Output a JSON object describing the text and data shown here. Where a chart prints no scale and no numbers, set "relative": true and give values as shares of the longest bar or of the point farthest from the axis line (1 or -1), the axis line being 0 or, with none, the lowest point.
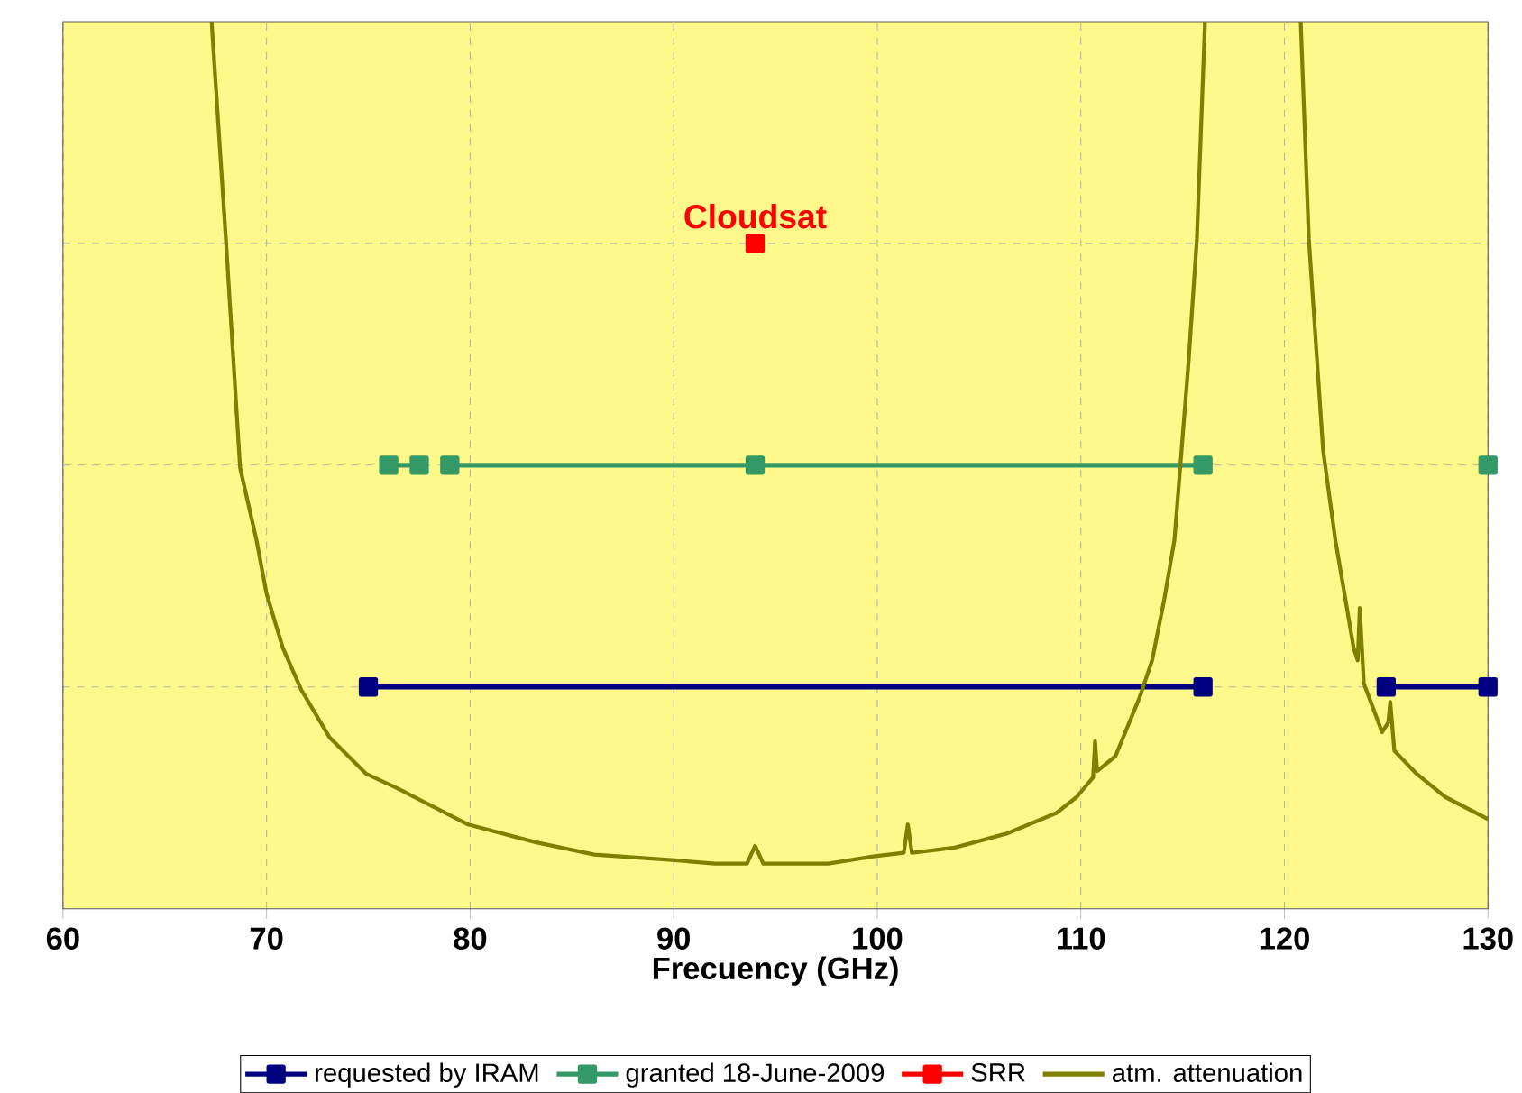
{
  "chart_data": {
    "type": "line",
    "relative": true,
    "xlabel": "Frecuency (GHz)",
    "xlim": [
      60,
      130
    ],
    "xticks": [
      60,
      70,
      80,
      90,
      100,
      110,
      120,
      130
    ],
    "grid": true,
    "legend": "bottom",
    "marker": "square",
    "line_style": "solid",
    "annotations": [
      {
        "text": "Cloudsat",
        "x": 94,
        "y": 0.75
      }
    ],
    "series": [
      {
        "name": "requested by IRAM",
        "color": "#000080",
        "x": [
          75,
          116,
          120,
          125,
          130
        ],
        "values": [
          0.25,
          0.25,
          null,
          0.25,
          0.25
        ]
      },
      {
        "name": "granted 18-June-2009",
        "color": "#339966",
        "x": [
          76,
          77.5,
          78,
          79,
          94,
          116,
          120,
          130
        ],
        "values": [
          0.5,
          0.5,
          null,
          0.5,
          0.5,
          0.5,
          null,
          0.5
        ]
      },
      {
        "name": "SRR",
        "color": "#ff0000",
        "x": [
          94
        ],
        "values": [
          0.75
        ]
      },
      {
        "name": "atm. attenuation",
        "color": "#808000",
        "marker": "none",
        "x": [
          67.3,
          68.0,
          68.7,
          69.5,
          70.0,
          70.8,
          71.7,
          73.1,
          74.9,
          76.4,
          79.9,
          83.2,
          86.1,
          89.9,
          92.0,
          93.6,
          94.0,
          94.4,
          97.6,
          99.8,
          101.3,
          101.5,
          101.7,
          103.8,
          106.4,
          108.8,
          109.8,
          110.6,
          110.7,
          110.8,
          111.7,
          112.9,
          113.5,
          114.1,
          114.6,
          115.3,
          115.7,
          116.1
        ],
        "values": [
          1.0,
          0.755,
          0.497,
          0.416,
          0.355,
          0.294,
          0.247,
          0.193,
          0.152,
          0.136,
          0.095,
          0.075,
          0.061,
          0.055,
          0.051,
          0.051,
          0.071,
          0.051,
          0.051,
          0.059,
          0.063,
          0.095,
          0.063,
          0.069,
          0.085,
          0.108,
          0.126,
          0.148,
          0.189,
          0.155,
          0.172,
          0.239,
          0.28,
          0.349,
          0.416,
          0.619,
          0.755,
          1.0
        ]
      },
      {
        "color": "#808000",
        "marker": "none",
        "x": [
          120.8,
          121.2,
          121.9,
          122.5,
          123.4,
          123.6,
          123.7,
          123.9,
          124.8,
          125.1,
          125.2,
          125.4,
          126.5,
          127.9,
          130
        ],
        "values": [
          1.0,
          0.755,
          0.517,
          0.416,
          0.294,
          0.28,
          0.339,
          0.254,
          0.199,
          0.21,
          0.233,
          0.178,
          0.152,
          0.126,
          0.101
        ]
      }
    ]
  }
}
